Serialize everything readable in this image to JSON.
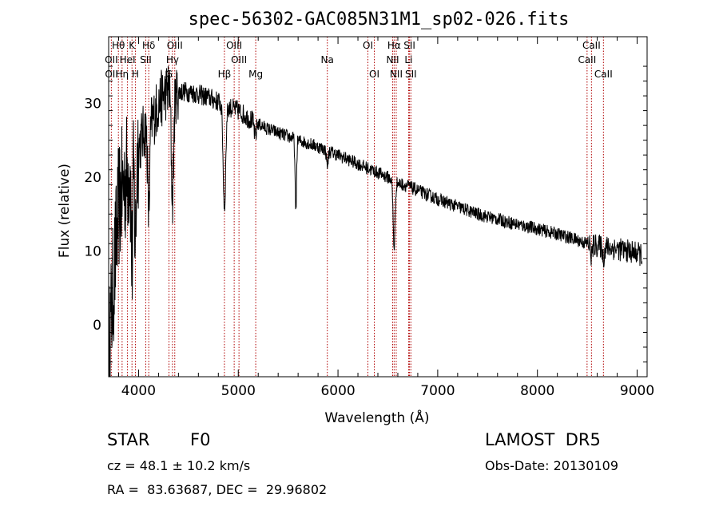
{
  "chart_data": {
    "type": "line",
    "title": "spec-56302-GAC085N31M1_sp02-026.fits",
    "xlabel": "Wavelength (Å)",
    "ylabel": "Flux (relative)",
    "xlim": [
      3700,
      9100
    ],
    "ylim": [
      -7,
      39
    ],
    "xticks": [
      4000,
      5000,
      6000,
      7000,
      8000,
      9000
    ],
    "yticks": [
      0,
      10,
      20,
      30
    ],
    "grid": false,
    "legend": "none",
    "colors": {
      "spectrum": "#000000",
      "line_markers": "#b00000",
      "axes": "#000000"
    },
    "spectrum_anchors": {
      "x": [
        3700,
        3750,
        3800,
        3850,
        3900,
        3950,
        4000,
        4050,
        4100,
        4150,
        4200,
        4250,
        4300,
        4340,
        4400,
        4450,
        4500,
        4550,
        4600,
        4650,
        4700,
        4750,
        4800,
        4861,
        4900,
        5000,
        5100,
        5200,
        5300,
        5400,
        5500,
        5600,
        5700,
        5800,
        5900,
        6000,
        6100,
        6200,
        6300,
        6400,
        6500,
        6563,
        6600,
        6700,
        6800,
        6900,
        7000,
        7200,
        7400,
        7600,
        7800,
        8000,
        8200,
        8400,
        8500,
        8600,
        8700,
        8800,
        8900,
        9000,
        9050
      ],
      "y": [
        -4,
        6,
        16,
        19,
        21,
        23,
        24,
        26,
        27,
        28,
        30,
        31,
        32,
        31,
        31.5,
        31.6,
        31.5,
        31.4,
        31.2,
        31,
        30.8,
        30.5,
        30.2,
        29.8,
        29.5,
        29,
        28,
        27.2,
        26.5,
        26,
        25.5,
        25,
        24.6,
        24.1,
        23.6,
        23,
        22.4,
        21.8,
        21.2,
        20.6,
        20,
        19.5,
        19.2,
        18.8,
        18.2,
        17.6,
        17,
        16,
        15,
        14.3,
        13.6,
        13,
        12.3,
        11.5,
        11,
        10.7,
        10.5,
        10.3,
        10,
        9.7,
        9.5
      ]
    },
    "absorption_features": [
      {
        "x": 3934,
        "depth": 14,
        "width": 12
      },
      {
        "x": 3968,
        "depth": 12,
        "width": 12
      },
      {
        "x": 4102,
        "depth": 12,
        "width": 14
      },
      {
        "x": 4340,
        "depth": 14,
        "width": 16
      },
      {
        "x": 4861,
        "depth": 14,
        "width": 18
      },
      {
        "x": 5170,
        "depth": 2,
        "width": 15
      },
      {
        "x": 5577,
        "depth": 10,
        "width": 10
      },
      {
        "x": 5893,
        "depth": 2,
        "width": 12
      },
      {
        "x": 6563,
        "depth": 9,
        "width": 14
      },
      {
        "x": 8542,
        "depth": 1.5,
        "width": 12
      },
      {
        "x": 8662,
        "depth": 1.5,
        "width": 12
      }
    ],
    "annotations": [
      {
        "label": "Hθ",
        "x": 3798,
        "row": 0
      },
      {
        "label": "K",
        "x": 3934,
        "row": 0
      },
      {
        "label": "Hδ",
        "x": 4102,
        "row": 0
      },
      {
        "label": "OIII",
        "x": 4363,
        "row": 0
      },
      {
        "label": "OIII",
        "x": 4959,
        "row": 0
      },
      {
        "label": "OI",
        "x": 6300,
        "row": 0
      },
      {
        "label": "Hα",
        "x": 6563,
        "row": 0
      },
      {
        "label": "SII",
        "x": 6717,
        "row": 0
      },
      {
        "label": "CaII",
        "x": 8542,
        "row": 0
      },
      {
        "label": "OII",
        "x": 3727,
        "row": 1
      },
      {
        "label": "HeI",
        "x": 3889,
        "row": 1
      },
      {
        "label": "SII",
        "x": 4072,
        "row": 1
      },
      {
        "label": "Hγ",
        "x": 4340,
        "row": 1
      },
      {
        "label": "OIII",
        "x": 5007,
        "row": 1
      },
      {
        "label": "Na",
        "x": 5893,
        "row": 1
      },
      {
        "label": "NII",
        "x": 6548,
        "row": 1
      },
      {
        "label": "Li",
        "x": 6708,
        "row": 1
      },
      {
        "label": "CaII",
        "x": 8498,
        "row": 1
      },
      {
        "label": "OII",
        "x": 3729,
        "row": 2
      },
      {
        "label": "Hη",
        "x": 3835,
        "row": 2
      },
      {
        "label": "H",
        "x": 3968,
        "row": 2
      },
      {
        "label": "G",
        "x": 4305,
        "row": 2
      },
      {
        "label": "Hβ",
        "x": 4861,
        "row": 2
      },
      {
        "label": "Mg",
        "x": 5175,
        "row": 2
      },
      {
        "label": "OI",
        "x": 6364,
        "row": 2
      },
      {
        "label": "NII",
        "x": 6584,
        "row": 2
      },
      {
        "label": "SII",
        "x": 6731,
        "row": 2
      },
      {
        "label": "CaII",
        "x": 8662,
        "row": 2
      }
    ],
    "marker_lines": [
      3727,
      3798,
      3835,
      3889,
      3934,
      3968,
      4072,
      4102,
      4305,
      4340,
      4363,
      4861,
      4959,
      5007,
      5175,
      5893,
      6300,
      6364,
      6548,
      6563,
      6584,
      6708,
      6717,
      6731,
      8498,
      8542,
      8662
    ]
  },
  "info": {
    "object_type": "STAR",
    "subclass": "F0",
    "survey": "LAMOST  DR5",
    "redshift": "cz = 48.1 ± 10.2 km/s",
    "obs_date": "Obs-Date: 20130109",
    "coords": "RA =  83.63687, DEC =  29.96802"
  }
}
